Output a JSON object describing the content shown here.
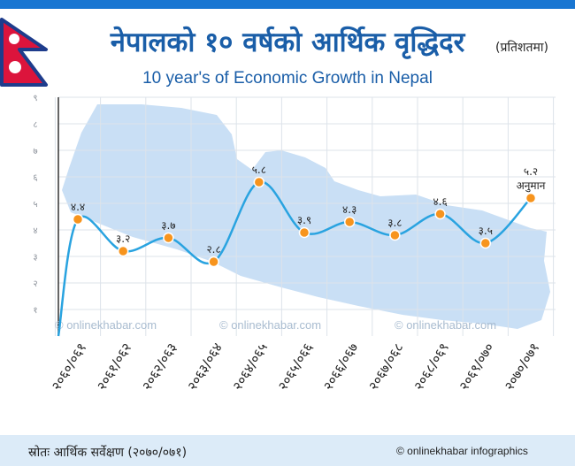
{
  "title_np": "नेपालको १० वर्षको आर्थिक वृद्धिदर",
  "title_note": "(प्रतिशतमा)",
  "title_en": "10 year's of Economic Growth in Nepal",
  "source": "स्रोतः आर्थिक सर्वेक्षण (२०७०/०७१)",
  "credit": "© onlinekhabar infographics",
  "watermark": "© onlinekhabar.com",
  "colors": {
    "accent": "#1976d2",
    "title": "#1a5ea8",
    "line": "#29a3e0",
    "marker": "#f7941d",
    "map": "#c9dff5",
    "footer": "#dcebf8"
  },
  "chart_data": {
    "type": "line",
    "categories": [
      "२०६०/०६१",
      "२०६१/०६२",
      "२०६२/०६३",
      "२०६३/०६४",
      "२०६४/०६५",
      "२०६५/०६६",
      "२०६६/०६७",
      "२०६७/०६८",
      "२०६८/०६९",
      "२०६९/०७०",
      "२०७०/०७१"
    ],
    "values": [
      4.4,
      3.2,
      3.7,
      2.8,
      5.8,
      3.9,
      4.3,
      3.8,
      4.6,
      3.5,
      5.2
    ],
    "point_labels": [
      "४.४",
      "३.२",
      "३.७",
      "२.८",
      "५.८",
      "३.९",
      "४.३",
      "३.८",
      "४.६",
      "३.५",
      "५.२"
    ],
    "annotations": [
      {
        "index": 10,
        "text": "अनुमान"
      }
    ],
    "ytick_labels": [
      "१",
      "२",
      "३",
      "४",
      "५",
      "६",
      "७",
      "८",
      "९"
    ],
    "ylim": [
      0,
      9
    ],
    "grid": true,
    "title": "नेपालको १० वर्षको आर्थिक वृद्धिदर",
    "xlabel": "",
    "ylabel": ""
  }
}
